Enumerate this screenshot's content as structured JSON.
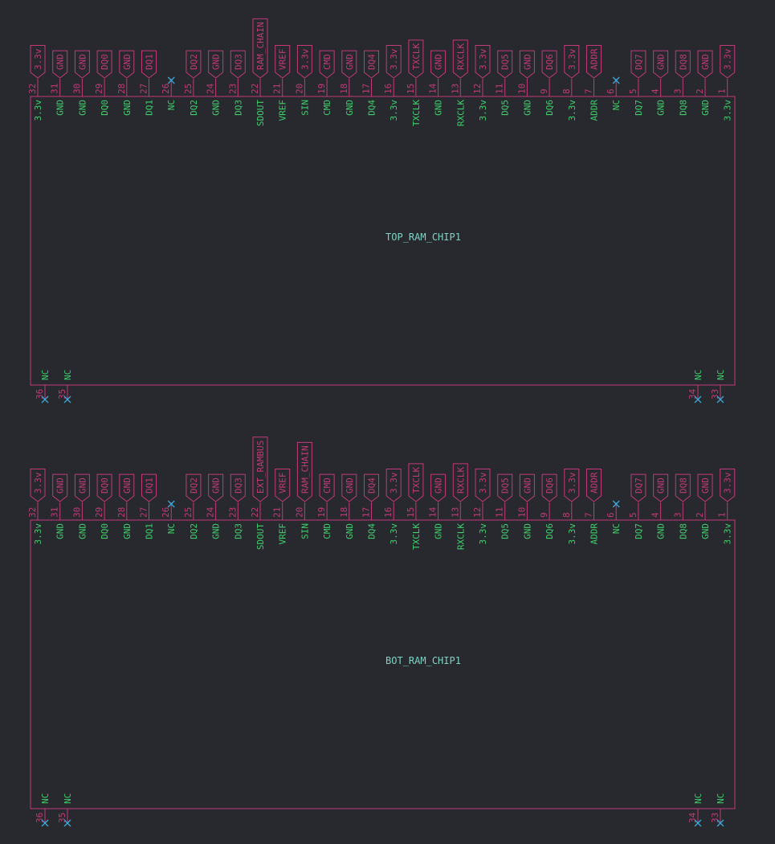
{
  "chips": [
    {
      "name": "TOP_RAM_CHIP1",
      "top_pins": [
        {
          "number": "32",
          "name": "3.3v",
          "net": "3.3v"
        },
        {
          "number": "31",
          "name": "GND",
          "net": "GND"
        },
        {
          "number": "30",
          "name": "GND",
          "net": "GND"
        },
        {
          "number": "29",
          "name": "DQ0",
          "net": "DQ0"
        },
        {
          "number": "28",
          "name": "GND",
          "net": "GND"
        },
        {
          "number": "27",
          "name": "DQ1",
          "net": "DQ1"
        },
        {
          "number": "26",
          "name": "NC"
        },
        {
          "number": "25",
          "name": "DQ2",
          "net": "DQ2"
        },
        {
          "number": "24",
          "name": "GND",
          "net": "GND"
        },
        {
          "number": "23",
          "name": "DQ3",
          "net": "DQ3"
        },
        {
          "number": "22",
          "name": "SDOUT",
          "net": "RAM_CHAIN"
        },
        {
          "number": "21",
          "name": "VREF",
          "net": "VREF"
        },
        {
          "number": "20",
          "name": "SIN",
          "net": "3.3v"
        },
        {
          "number": "19",
          "name": "CMD",
          "net": "CMD"
        },
        {
          "number": "18",
          "name": "GND",
          "net": "GND"
        },
        {
          "number": "17",
          "name": "DQ4",
          "net": "DQ4"
        },
        {
          "number": "16",
          "name": "3.3v",
          "net": "3.3v"
        },
        {
          "number": "15",
          "name": "TXCLK",
          "net": "TXCLK"
        },
        {
          "number": "14",
          "name": "GND",
          "net": "GND"
        },
        {
          "number": "13",
          "name": "RXCLK",
          "net": "RXCLK"
        },
        {
          "number": "12",
          "name": "3.3v",
          "net": "3.3v"
        },
        {
          "number": "11",
          "name": "DQ5",
          "net": "DQ5"
        },
        {
          "number": "10",
          "name": "GND",
          "net": "GND"
        },
        {
          "number": "9",
          "name": "DQ6",
          "net": "DQ6"
        },
        {
          "number": "8",
          "name": "3.3v",
          "net": "3.3v"
        },
        {
          "number": "7",
          "name": "ADDR",
          "net": "ADDR"
        },
        {
          "number": "6",
          "name": "NC"
        },
        {
          "number": "5",
          "name": "DQ7",
          "net": "DQ7"
        },
        {
          "number": "4",
          "name": "GND",
          "net": "GND"
        },
        {
          "number": "3",
          "name": "DQ8",
          "net": "DQ8"
        },
        {
          "number": "2",
          "name": "GND",
          "net": "GND"
        },
        {
          "number": "1",
          "name": "3.3v",
          "net": "3.3v"
        }
      ],
      "bottom_pins": [
        {
          "number": "36",
          "name": "NC"
        },
        {
          "number": "35",
          "name": "NC"
        },
        {
          "number": "34",
          "name": "NC"
        },
        {
          "number": "33",
          "name": "NC"
        }
      ]
    },
    {
      "name": "BOT_RAM_CHIP1",
      "top_pins": [
        {
          "number": "32",
          "name": "3.3v",
          "net": "3.3v"
        },
        {
          "number": "31",
          "name": "GND",
          "net": "GND"
        },
        {
          "number": "30",
          "name": "GND",
          "net": "GND"
        },
        {
          "number": "29",
          "name": "DQ0",
          "net": "DQ0"
        },
        {
          "number": "28",
          "name": "GND",
          "net": "GND"
        },
        {
          "number": "27",
          "name": "DQ1",
          "net": "DQ1"
        },
        {
          "number": "26",
          "name": "NC"
        },
        {
          "number": "25",
          "name": "DQ2",
          "net": "DQ2"
        },
        {
          "number": "24",
          "name": "GND",
          "net": "GND"
        },
        {
          "number": "23",
          "name": "DQ3",
          "net": "DQ3"
        },
        {
          "number": "22",
          "name": "SDOUT",
          "net": "EXT_RAMBUS"
        },
        {
          "number": "21",
          "name": "VREF",
          "net": "VREF"
        },
        {
          "number": "20",
          "name": "SIN",
          "net": "RAM_CHAIN"
        },
        {
          "number": "19",
          "name": "CMD",
          "net": "CMD"
        },
        {
          "number": "18",
          "name": "GND",
          "net": "GND"
        },
        {
          "number": "17",
          "name": "DQ4",
          "net": "DQ4"
        },
        {
          "number": "16",
          "name": "3.3v",
          "net": "3.3v"
        },
        {
          "number": "15",
          "name": "TXCLK",
          "net": "TXCLK"
        },
        {
          "number": "14",
          "name": "GND",
          "net": "GND"
        },
        {
          "number": "13",
          "name": "RXCLK",
          "net": "RXCLK"
        },
        {
          "number": "12",
          "name": "3.3v",
          "net": "3.3v"
        },
        {
          "number": "11",
          "name": "DQ5",
          "net": "DQ5"
        },
        {
          "number": "10",
          "name": "GND",
          "net": "GND"
        },
        {
          "number": "9",
          "name": "DQ6",
          "net": "DQ6"
        },
        {
          "number": "8",
          "name": "3.3v",
          "net": "3.3v"
        },
        {
          "number": "7",
          "name": "ADDR",
          "net": "ADDR"
        },
        {
          "number": "6",
          "name": "NC"
        },
        {
          "number": "5",
          "name": "DQ7",
          "net": "DQ7"
        },
        {
          "number": "4",
          "name": "GND",
          "net": "GND"
        },
        {
          "number": "3",
          "name": "DQ8",
          "net": "DQ8"
        },
        {
          "number": "2",
          "name": "GND",
          "net": "GND"
        },
        {
          "number": "1",
          "name": "3.3v",
          "net": "3.3v"
        }
      ],
      "bottom_pins": [
        {
          "number": "36",
          "name": "NC"
        },
        {
          "number": "35",
          "name": "NC"
        },
        {
          "number": "34",
          "name": "NC"
        },
        {
          "number": "33",
          "name": "NC"
        }
      ]
    }
  ]
}
